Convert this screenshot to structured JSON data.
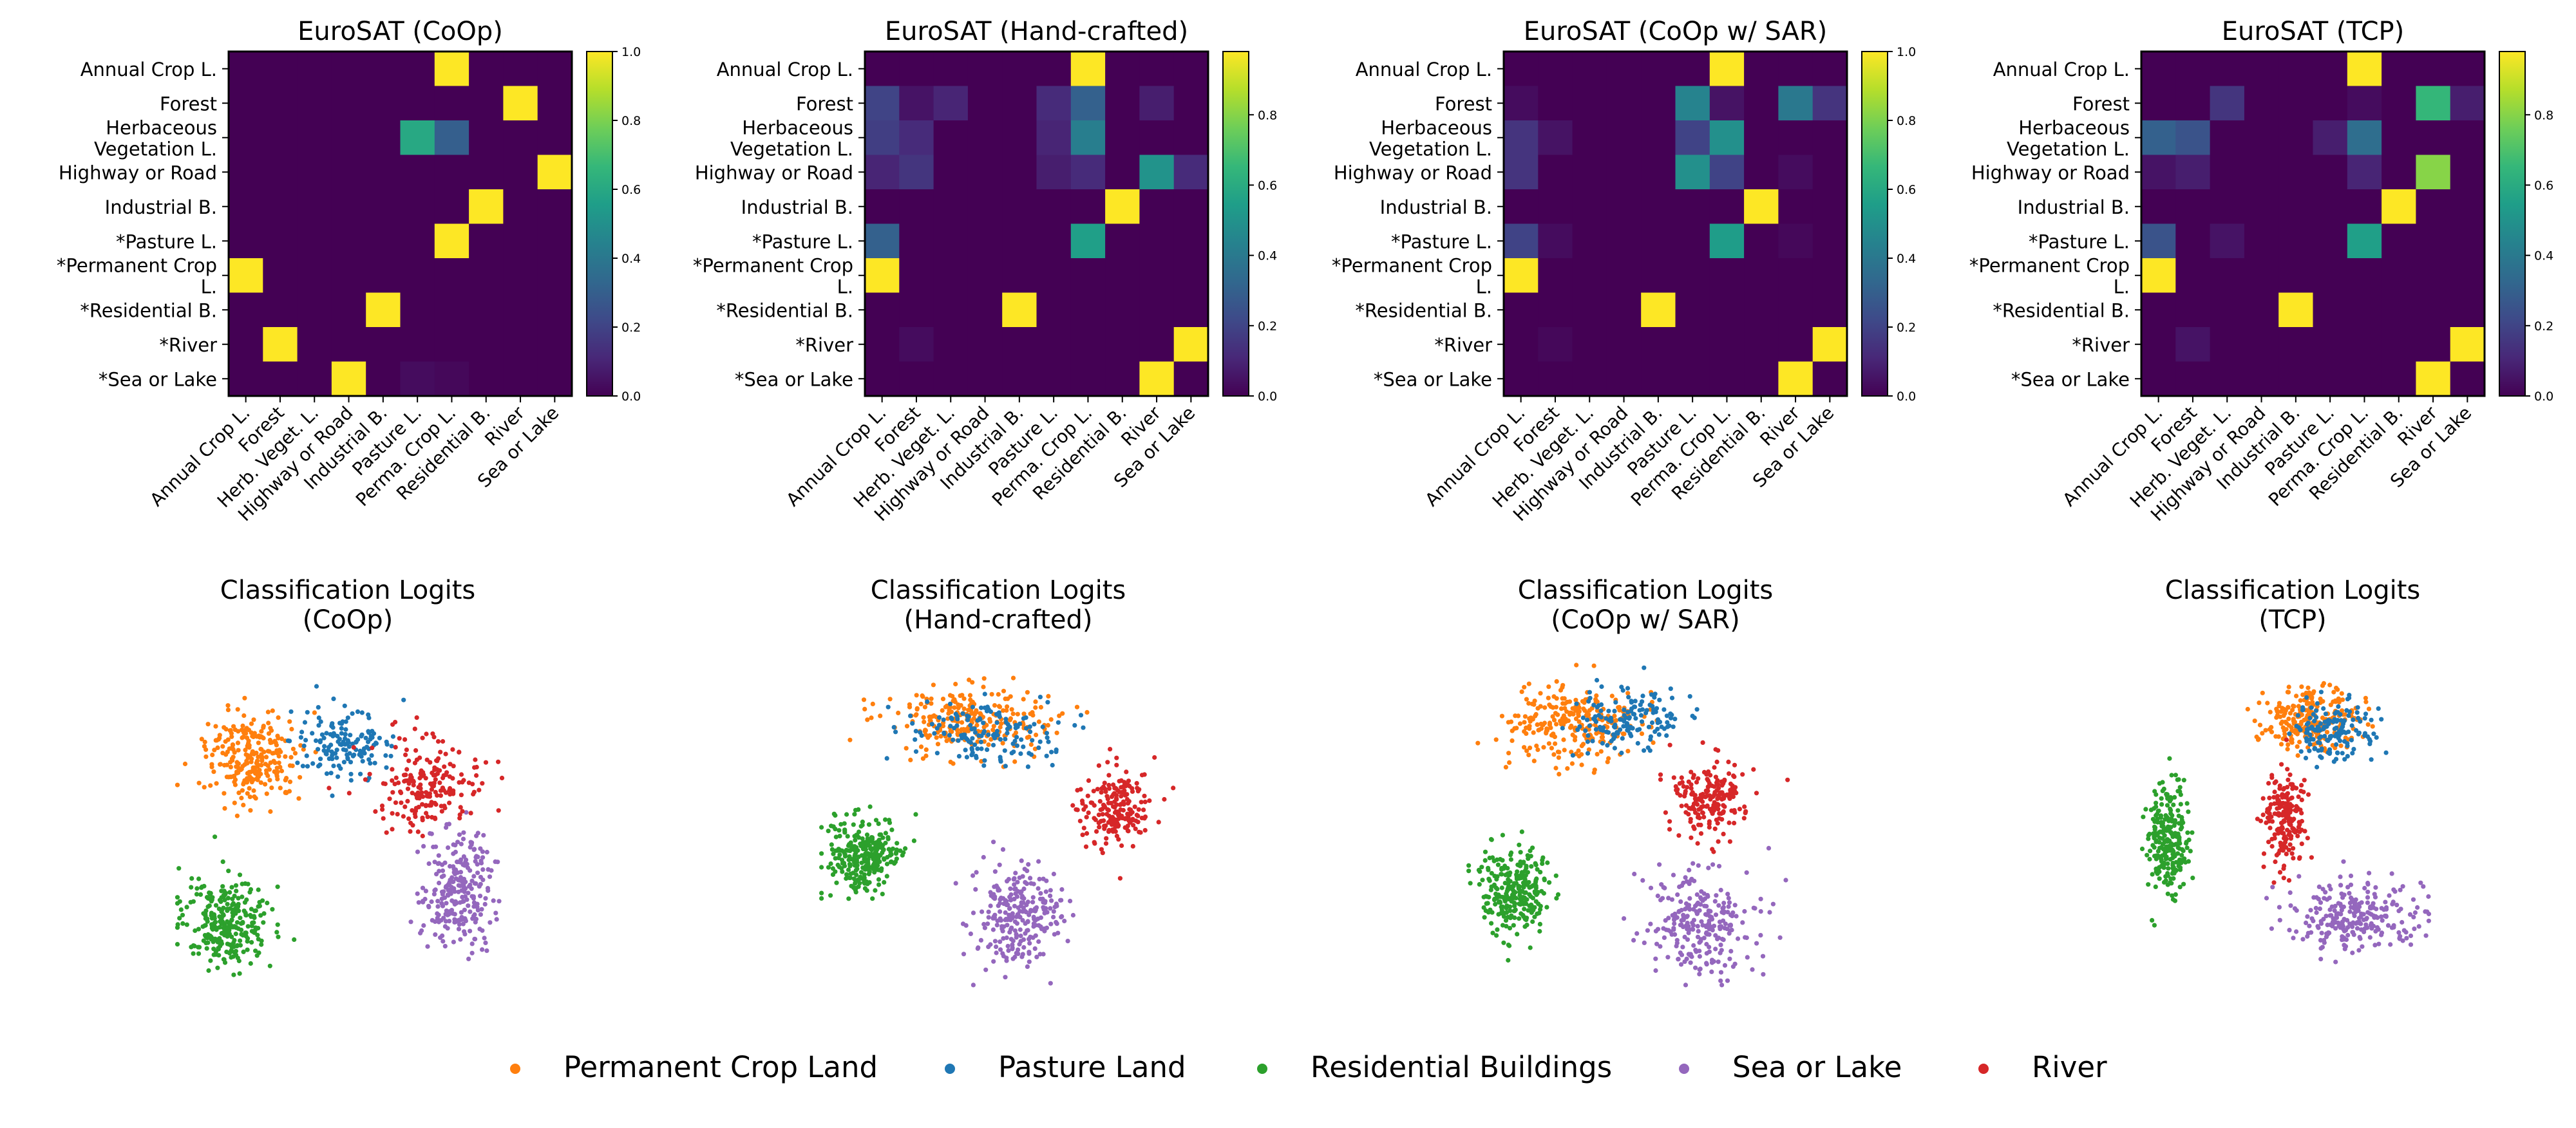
{
  "figure": {
    "legend": [
      {
        "label": "Permanent Crop Land",
        "color": "#ff7f0e"
      },
      {
        "label": "Pasture Land",
        "color": "#1f77b4"
      },
      {
        "label": "Residential Buildings",
        "color": "#2ca02c"
      },
      {
        "label": "Sea or Lake",
        "color": "#9467bd"
      },
      {
        "label": "River",
        "color": "#d62728"
      }
    ]
  },
  "chart_data": [
    {
      "type": "heatmap",
      "title": "EuroSAT (CoOp)",
      "colormap": "viridis",
      "row_labels": [
        "Annual Crop L.",
        "Forest",
        "Herbaceous\nVegetation L.",
        "Highway or Road",
        "Industrial B.",
        "*Pasture L.",
        "*Permanent Crop\nL.",
        "*Residential B.",
        "*River",
        "*Sea or Lake"
      ],
      "col_labels": [
        "Annual Crop L.",
        "Forest",
        "Herb. Veget. L.",
        "Highway or Road",
        "Industrial B.",
        "Pasture L.",
        "Perma. Crop L.",
        "Residential B.",
        "River",
        "Sea or Lake"
      ],
      "colorbar_ticks": [
        "0.0",
        "0.2",
        "0.4",
        "0.6",
        "0.8",
        "1.0"
      ],
      "vmax": 1.0,
      "values": [
        [
          0,
          0,
          0,
          0,
          0,
          0,
          1.0,
          0,
          0,
          0
        ],
        [
          0,
          0,
          0,
          0,
          0,
          0,
          0,
          0,
          1.0,
          0
        ],
        [
          0,
          0,
          0,
          0,
          0,
          0.6,
          0.3,
          0,
          0,
          0
        ],
        [
          0,
          0,
          0,
          0,
          0,
          0,
          0,
          0,
          0,
          1.0
        ],
        [
          0,
          0,
          0,
          0,
          0,
          0,
          0,
          1.0,
          0,
          0
        ],
        [
          0,
          0,
          0,
          0,
          0,
          0,
          1.0,
          0,
          0,
          0
        ],
        [
          1.0,
          0,
          0,
          0,
          0,
          0,
          0,
          0,
          0,
          0
        ],
        [
          0,
          0,
          0,
          0,
          1.0,
          0,
          0,
          0,
          0,
          0
        ],
        [
          0,
          1.0,
          0,
          0,
          0,
          0,
          0,
          0,
          0,
          0
        ],
        [
          0,
          0,
          0,
          1.0,
          0,
          0.03,
          0.02,
          0,
          0,
          0
        ]
      ]
    },
    {
      "type": "heatmap",
      "title": "EuroSAT (Hand-crafted)",
      "colormap": "viridis",
      "row_labels": [
        "Annual Crop L.",
        "Forest",
        "Herbaceous\nVegetation L.",
        "Highway or Road",
        "Industrial B.",
        "*Pasture L.",
        "*Permanent Crop\nL.",
        "*Residential B.",
        "*River",
        "*Sea or Lake"
      ],
      "col_labels": [
        "Annual Crop L.",
        "Forest",
        "Herb. Veget. L.",
        "Highway or Road",
        "Industrial B.",
        "Pasture L.",
        "Perma. Crop L.",
        "Residential B.",
        "River",
        "Sea or Lake"
      ],
      "colorbar_ticks": [
        "0.0",
        "0.2",
        "0.4",
        "0.6",
        "0.8"
      ],
      "vmax": 0.98,
      "values": [
        [
          0,
          0,
          0,
          0,
          0,
          0,
          0.98,
          0,
          0,
          0
        ],
        [
          0.2,
          0.05,
          0.1,
          0,
          0,
          0.12,
          0.3,
          0,
          0.08,
          0
        ],
        [
          0.18,
          0.12,
          0,
          0,
          0,
          0.1,
          0.42,
          0,
          0,
          0
        ],
        [
          0.1,
          0.15,
          0,
          0,
          0,
          0.08,
          0.12,
          0,
          0.5,
          0.12
        ],
        [
          0,
          0,
          0,
          0,
          0,
          0,
          0,
          0.98,
          0,
          0
        ],
        [
          0.3,
          0,
          0,
          0,
          0,
          0,
          0.55,
          0,
          0,
          0
        ],
        [
          0.98,
          0,
          0,
          0,
          0,
          0,
          0,
          0,
          0,
          0
        ],
        [
          0,
          0,
          0,
          0,
          0.98,
          0,
          0,
          0,
          0,
          0
        ],
        [
          0,
          0.03,
          0,
          0,
          0,
          0,
          0,
          0,
          0,
          0.98
        ],
        [
          0,
          0,
          0,
          0,
          0,
          0,
          0,
          0,
          0.98,
          0
        ]
      ]
    },
    {
      "type": "heatmap",
      "title": "EuroSAT (CoOp w/ SAR)",
      "colormap": "viridis",
      "row_labels": [
        "Annual Crop L.",
        "Forest",
        "Herbaceous\nVegetation L.",
        "Highway or Road",
        "Industrial B.",
        "*Pasture L.",
        "*Permanent Crop\nL.",
        "*Residential B.",
        "*River",
        "*Sea or Lake"
      ],
      "col_labels": [
        "Annual Crop L.",
        "Forest",
        "Herb. Veget. L.",
        "Highway or Road",
        "Industrial B.",
        "Pasture L.",
        "Perma. Crop L.",
        "Residential B.",
        "River",
        "Sea or Lake"
      ],
      "colorbar_ticks": [
        "0.0",
        "0.2",
        "0.4",
        "0.6",
        "0.8",
        "1.0"
      ],
      "vmax": 1.0,
      "values": [
        [
          0,
          0,
          0,
          0,
          0,
          0,
          1.0,
          0,
          0,
          0
        ],
        [
          0.03,
          0,
          0,
          0,
          0,
          0.45,
          0.05,
          0,
          0.4,
          0.15
        ],
        [
          0.15,
          0.05,
          0,
          0,
          0,
          0.2,
          0.5,
          0,
          0,
          0
        ],
        [
          0.15,
          0,
          0,
          0,
          0,
          0.5,
          0.2,
          0,
          0.03,
          0
        ],
        [
          0,
          0,
          0,
          0,
          0,
          0,
          0,
          1.0,
          0,
          0
        ],
        [
          0.2,
          0.03,
          0,
          0,
          0,
          0,
          0.55,
          0,
          0.02,
          0
        ],
        [
          1.0,
          0,
          0,
          0,
          0,
          0,
          0,
          0,
          0,
          0
        ],
        [
          0,
          0,
          0,
          0,
          1.0,
          0,
          0,
          0,
          0,
          0
        ],
        [
          0,
          0.02,
          0,
          0,
          0,
          0,
          0,
          0,
          0,
          1.0
        ],
        [
          0,
          0,
          0,
          0,
          0,
          0,
          0,
          0,
          1.0,
          0
        ]
      ]
    },
    {
      "type": "heatmap",
      "title": "EuroSAT (TCP)",
      "colormap": "viridis",
      "row_labels": [
        "Annual Crop L.",
        "Forest",
        "Herbaceous\nVegetation L.",
        "Highway or Road",
        "Industrial B.",
        "*Pasture L.",
        "*Permanent Crop\nL.",
        "*Residential B.",
        "*River",
        "*Sea or Lake"
      ],
      "col_labels": [
        "Annual Crop L.",
        "Forest",
        "Herb. Veget. L.",
        "Highway or Road",
        "Industrial B.",
        "Pasture L.",
        "Perma. Crop L.",
        "Residential B.",
        "River",
        "Sea or Lake"
      ],
      "colorbar_ticks": [
        "0.0",
        "0.2",
        "0.4",
        "0.6",
        "0.8"
      ],
      "vmax": 0.98,
      "values": [
        [
          0,
          0,
          0,
          0,
          0,
          0,
          0.98,
          0,
          0,
          0
        ],
        [
          0,
          0,
          0.15,
          0,
          0,
          0,
          0.03,
          0,
          0.65,
          0.08
        ],
        [
          0.3,
          0.25,
          0,
          0,
          0,
          0.08,
          0.35,
          0,
          0,
          0
        ],
        [
          0.05,
          0.08,
          0,
          0,
          0,
          0,
          0.1,
          0,
          0.8,
          0
        ],
        [
          0,
          0,
          0,
          0,
          0,
          0,
          0,
          0.98,
          0,
          0
        ],
        [
          0.25,
          0,
          0.05,
          0,
          0,
          0,
          0.55,
          0,
          0,
          0
        ],
        [
          0.98,
          0,
          0,
          0,
          0,
          0,
          0,
          0,
          0,
          0
        ],
        [
          0,
          0,
          0,
          0,
          0.98,
          0,
          0,
          0,
          0,
          0
        ],
        [
          0,
          0.05,
          0,
          0,
          0,
          0,
          0,
          0,
          0,
          0.98
        ],
        [
          0,
          0,
          0,
          0,
          0,
          0,
          0,
          0,
          0.98,
          0
        ]
      ]
    },
    {
      "type": "scatter",
      "title": "Classification Logits\n(CoOp)",
      "axes": "off",
      "clusters": [
        {
          "name": "Permanent Crop Land",
          "color": "#ff7f0e",
          "center": [
            0.22,
            0.3
          ],
          "spread": [
            0.13,
            0.14
          ],
          "count": 260
        },
        {
          "name": "Pasture Land",
          "color": "#1f77b4",
          "center": [
            0.48,
            0.25
          ],
          "spread": [
            0.15,
            0.1
          ],
          "count": 150
        },
        {
          "name": "Residential Buildings",
          "color": "#2ca02c",
          "center": [
            0.15,
            0.8
          ],
          "spread": [
            0.12,
            0.13
          ],
          "count": 300
        },
        {
          "name": "Sea or Lake",
          "color": "#9467bd",
          "center": [
            0.8,
            0.7
          ],
          "spread": [
            0.1,
            0.18
          ],
          "count": 260
        },
        {
          "name": "River",
          "color": "#d62728",
          "center": [
            0.72,
            0.38
          ],
          "spread": [
            0.15,
            0.13
          ],
          "count": 200
        }
      ]
    },
    {
      "type": "scatter",
      "title": "Classification Logits\n(Hand-crafted)",
      "axes": "off",
      "clusters": [
        {
          "name": "Permanent Crop Land",
          "color": "#ff7f0e",
          "center": [
            0.42,
            0.18
          ],
          "spread": [
            0.22,
            0.1
          ],
          "count": 260
        },
        {
          "name": "Pasture Land",
          "color": "#1f77b4",
          "center": [
            0.45,
            0.22
          ],
          "spread": [
            0.2,
            0.1
          ],
          "count": 150
        },
        {
          "name": "Residential Buildings",
          "color": "#2ca02c",
          "center": [
            0.13,
            0.6
          ],
          "spread": [
            0.1,
            0.12
          ],
          "count": 280
        },
        {
          "name": "Sea or Lake",
          "color": "#9467bd",
          "center": [
            0.55,
            0.78
          ],
          "spread": [
            0.12,
            0.15
          ],
          "count": 260
        },
        {
          "name": "River",
          "color": "#d62728",
          "center": [
            0.82,
            0.45
          ],
          "spread": [
            0.1,
            0.12
          ],
          "count": 200
        }
      ]
    },
    {
      "type": "scatter",
      "title": "Classification Logits\n(CoOp w/ SAR)",
      "axes": "off",
      "clusters": [
        {
          "name": "Permanent Crop Land",
          "color": "#ff7f0e",
          "center": [
            0.3,
            0.2
          ],
          "spread": [
            0.18,
            0.12
          ],
          "count": 260
        },
        {
          "name": "Pasture Land",
          "color": "#1f77b4",
          "center": [
            0.45,
            0.18
          ],
          "spread": [
            0.15,
            0.1
          ],
          "count": 150
        },
        {
          "name": "Residential Buildings",
          "color": "#2ca02c",
          "center": [
            0.14,
            0.7
          ],
          "spread": [
            0.1,
            0.13
          ],
          "count": 280
        },
        {
          "name": "Sea or Lake",
          "color": "#9467bd",
          "center": [
            0.65,
            0.8
          ],
          "spread": [
            0.15,
            0.15
          ],
          "count": 260
        },
        {
          "name": "River",
          "color": "#d62728",
          "center": [
            0.68,
            0.42
          ],
          "spread": [
            0.1,
            0.12
          ],
          "count": 200
        }
      ]
    },
    {
      "type": "scatter",
      "title": "Classification Logits\n(TCP)",
      "axes": "off",
      "clusters": [
        {
          "name": "Permanent Crop Land",
          "color": "#ff7f0e",
          "center": [
            0.55,
            0.18
          ],
          "spread": [
            0.14,
            0.09
          ],
          "count": 240
        },
        {
          "name": "Pasture Land",
          "color": "#1f77b4",
          "center": [
            0.62,
            0.22
          ],
          "spread": [
            0.12,
            0.09
          ],
          "count": 150
        },
        {
          "name": "Residential Buildings",
          "color": "#2ca02c",
          "center": [
            0.14,
            0.55
          ],
          "spread": [
            0.06,
            0.17
          ],
          "count": 260
        },
        {
          "name": "Sea or Lake",
          "color": "#9467bd",
          "center": [
            0.68,
            0.78
          ],
          "spread": [
            0.2,
            0.1
          ],
          "count": 260
        },
        {
          "name": "River",
          "color": "#d62728",
          "center": [
            0.48,
            0.48
          ],
          "spread": [
            0.06,
            0.14
          ],
          "count": 200
        }
      ]
    }
  ]
}
